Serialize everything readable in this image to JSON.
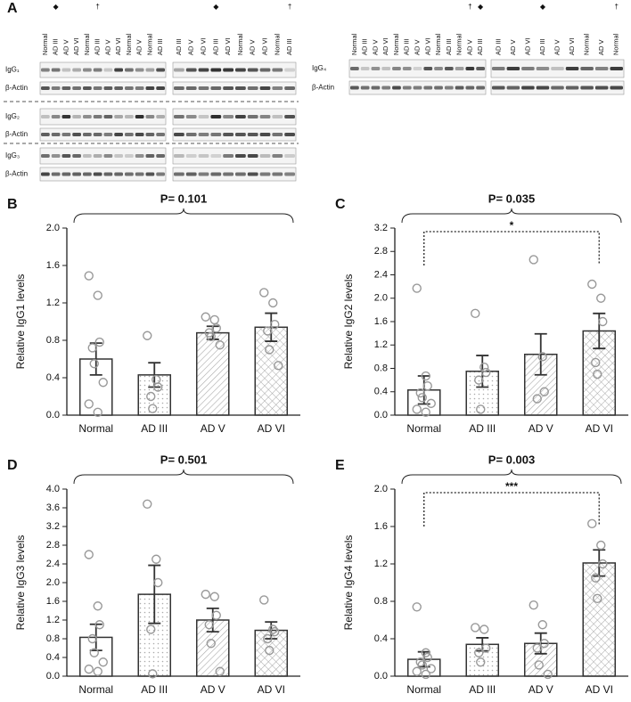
{
  "blot_panel": {
    "label": "A",
    "groups": [
      {
        "rows": [
          "IgG₁",
          "β-Actin",
          "IgG₂",
          "β-Actin",
          "IgG₃",
          "β-Actin"
        ],
        "blocks": [
          {
            "lanes": [
              "Normal",
              "AD III",
              "AD V",
              "AD VI",
              "Normal",
              "AD III",
              "AD V",
              "AD VI",
              "Normal",
              "AD V",
              "Normal",
              "AD III"
            ],
            "markers": [
              null,
              "◆",
              null,
              null,
              null,
              "†",
              null,
              null,
              null,
              null,
              null,
              null
            ]
          },
          {
            "lanes": [
              "AD III",
              "AD V",
              "AD VI",
              "AD III",
              "AD VI",
              "Normal",
              "AD V",
              "AD VI",
              "Normal",
              "AD III"
            ],
            "markers": [
              null,
              null,
              null,
              "◆",
              null,
              null,
              null,
              null,
              null,
              "†"
            ]
          }
        ]
      },
      {
        "rows": [
          "IgG₄",
          "β-Actin"
        ],
        "blocks": [
          {
            "lanes": [
              "Normal",
              "AD III",
              "AD V",
              "AD VI",
              "Normal",
              "AD III",
              "AD V",
              "AD VI",
              "Normal",
              "AD III",
              "Normal",
              "AD V",
              "AD III"
            ],
            "markers": [
              null,
              null,
              null,
              null,
              null,
              null,
              null,
              null,
              null,
              null,
              null,
              "†",
              "◆"
            ]
          },
          {
            "lanes": [
              "AD III",
              "AD V",
              "AD VI",
              "AD III",
              "AD V",
              "AD VI",
              "Normal",
              "AD V",
              "Normal"
            ],
            "markers": [
              null,
              null,
              null,
              "◆",
              null,
              null,
              null,
              null,
              "†"
            ]
          }
        ]
      }
    ]
  },
  "chart_data": [
    {
      "panel": "B",
      "type": "bar",
      "title": "P= 0.101",
      "ylabel": "Relative IgG1 levels",
      "categories": [
        "Normal",
        "AD III",
        "AD V",
        "AD VI"
      ],
      "values": [
        0.6,
        0.43,
        0.88,
        0.94
      ],
      "errors": [
        0.17,
        0.13,
        0.07,
        0.15
      ],
      "points": [
        [
          1.49,
          1.28,
          0.78,
          0.72,
          0.55,
          0.35,
          0.12,
          0.03
        ],
        [
          0.85,
          0.38,
          0.3,
          0.2,
          0.07
        ],
        [
          1.05,
          1.02,
          0.93,
          0.88,
          0.84,
          0.75
        ],
        [
          1.31,
          1.2,
          0.97,
          0.9,
          0.7,
          0.53
        ]
      ],
      "hatch": [
        "none",
        "dots",
        "diagonal",
        "crosshatch"
      ],
      "color": "#333333",
      "point_color": "#999999",
      "ylim": [
        0,
        2
      ],
      "yticks": [
        {
          "value": 0,
          "label": "0.0"
        },
        0.4,
        0.8,
        1.2,
        1.6,
        {
          "value": 2,
          "label": "2.0"
        }
      ]
    },
    {
      "panel": "C",
      "type": "bar",
      "title": "P= 0.035",
      "ylabel": "Relative IgG2 levels",
      "categories": [
        "Normal",
        "AD III",
        "AD V",
        "AD VI"
      ],
      "values": [
        0.43,
        0.75,
        1.04,
        1.44
      ],
      "errors": [
        0.24,
        0.27,
        0.35,
        0.3
      ],
      "points": [
        [
          2.17,
          0.67,
          0.5,
          0.38,
          0.3,
          0.2,
          0.1,
          0.05
        ],
        [
          1.74,
          0.82,
          0.73,
          0.6,
          0.1
        ],
        [
          2.66,
          1.0,
          0.4,
          0.28
        ],
        [
          2.24,
          2.0,
          1.6,
          0.9,
          0.7
        ]
      ],
      "hatch": [
        "none",
        "dots",
        "diagonal",
        "crosshatch"
      ],
      "color": "#333333",
      "point_color": "#999999",
      "significance": "*",
      "ylim": [
        0,
        3.2
      ],
      "yticks": [
        {
          "value": 0,
          "label": "0.0"
        },
        0.4,
        0.8,
        1.2,
        1.6,
        {
          "value": 2,
          "label": "2.0"
        },
        2.4,
        2.8,
        3.2
      ]
    },
    {
      "panel": "D",
      "type": "bar",
      "title": "P= 0.501",
      "ylabel": "Relative IgG3 levels",
      "categories": [
        "Normal",
        "AD III",
        "AD V",
        "AD VI"
      ],
      "values": [
        0.83,
        1.75,
        1.2,
        0.98
      ],
      "errors": [
        0.28,
        0.62,
        0.25,
        0.18
      ],
      "points": [
        [
          2.6,
          1.5,
          1.1,
          0.8,
          0.5,
          0.3,
          0.15,
          0.1
        ],
        [
          3.68,
          2.5,
          2.0,
          1.0,
          0.05
        ],
        [
          1.75,
          1.7,
          1.3,
          1.1,
          0.7,
          0.1
        ],
        [
          1.63,
          1.0,
          0.95,
          0.8,
          0.55
        ]
      ],
      "hatch": [
        "none",
        "dots",
        "diagonal",
        "crosshatch"
      ],
      "color": "#333333",
      "point_color": "#999999",
      "ylim": [
        0,
        4
      ],
      "yticks": [
        {
          "value": 0,
          "label": "0.0"
        },
        0.4,
        0.8,
        1.2,
        1.6,
        {
          "value": 2,
          "label": "2.0"
        },
        2.4,
        2.8,
        3.2,
        3.6,
        {
          "value": 4,
          "label": "4.0"
        }
      ]
    },
    {
      "panel": "E",
      "type": "bar",
      "title": "P= 0.003",
      "ylabel": "Relative IgG4 levels",
      "categories": [
        "Normal",
        "AD III",
        "AD V",
        "AD VI"
      ],
      "values": [
        0.18,
        0.34,
        0.35,
        1.21
      ],
      "errors": [
        0.08,
        0.07,
        0.11,
        0.14
      ],
      "points": [
        [
          0.74,
          0.25,
          0.2,
          0.15,
          0.12,
          0.08,
          0.05,
          0.02
        ],
        [
          0.52,
          0.5,
          0.3,
          0.25,
          0.15
        ],
        [
          0.76,
          0.55,
          0.35,
          0.3,
          0.12,
          0.02
        ],
        [
          1.63,
          1.4,
          1.2,
          1.05,
          0.83
        ]
      ],
      "hatch": [
        "none",
        "dots",
        "diagonal",
        "crosshatch"
      ],
      "color": "#333333",
      "point_color": "#999999",
      "significance": "***",
      "ylim": [
        0,
        2
      ],
      "yticks": [
        {
          "value": 0,
          "label": "0.0"
        },
        0.4,
        0.8,
        1.2,
        1.6,
        {
          "value": 2,
          "label": "2.0"
        }
      ]
    }
  ]
}
